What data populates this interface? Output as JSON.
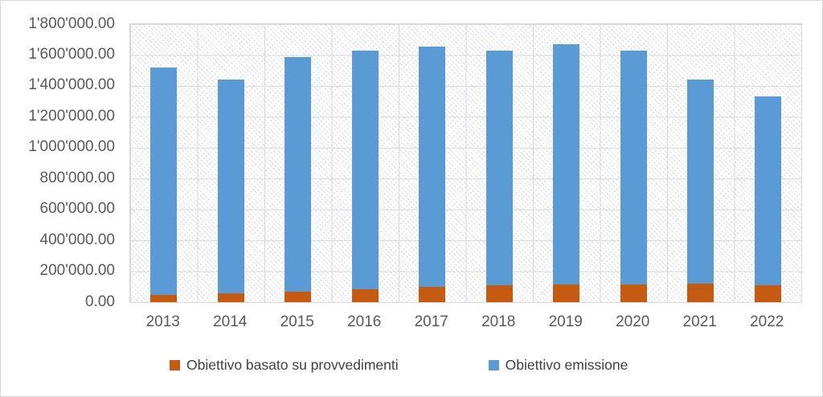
{
  "chart_data": {
    "type": "bar",
    "stacked": true,
    "title": "",
    "xlabel": "",
    "ylabel": "",
    "categories": [
      "2013",
      "2014",
      "2015",
      "2016",
      "2017",
      "2018",
      "2019",
      "2020",
      "2021",
      "2022"
    ],
    "series": [
      {
        "name": "Obiettivo basato su provvedimenti",
        "color": "#c55a11",
        "values": [
          45000,
          55000,
          70000,
          85000,
          100000,
          108000,
          113000,
          117000,
          120000,
          108000
        ]
      },
      {
        "name": "Obiettivo emissione",
        "color": "#5b9bd5",
        "values": [
          1472000,
          1385000,
          1516000,
          1543000,
          1554000,
          1521000,
          1557000,
          1513000,
          1322000,
          1222000
        ]
      }
    ],
    "stack_totals": [
      1517000,
      1440000,
      1586000,
      1628000,
      1654000,
      1629000,
      1670000,
      1630000,
      1442000,
      1330000
    ],
    "ylim": [
      0,
      1800000
    ],
    "ytick_step": 200000,
    "ytick_labels": [
      "0.00",
      "200'000.00",
      "400'000.00",
      "600'000.00",
      "800'000.00",
      "1'000'000.00",
      "1'200'000.00",
      "1'400'000.00",
      "1'600'000.00",
      "1'800'000.00"
    ],
    "grid": true,
    "grid_vertical": true,
    "plot_background": "diagonal-hatch",
    "legend_position": "bottom"
  },
  "legend": {
    "items": [
      {
        "label": "Obiettivo basato su provvedimenti",
        "color": "#c55a11"
      },
      {
        "label": "Obiettivo emissione",
        "color": "#5b9bd5"
      }
    ]
  },
  "colors": {
    "axis_text": "#595959",
    "legend_text": "#404040",
    "gridline": "#d9d9d9",
    "plot_border": "#d9d9d9",
    "chart_border": "#d9d9d9",
    "hatch_line": "#dcdcdc"
  }
}
